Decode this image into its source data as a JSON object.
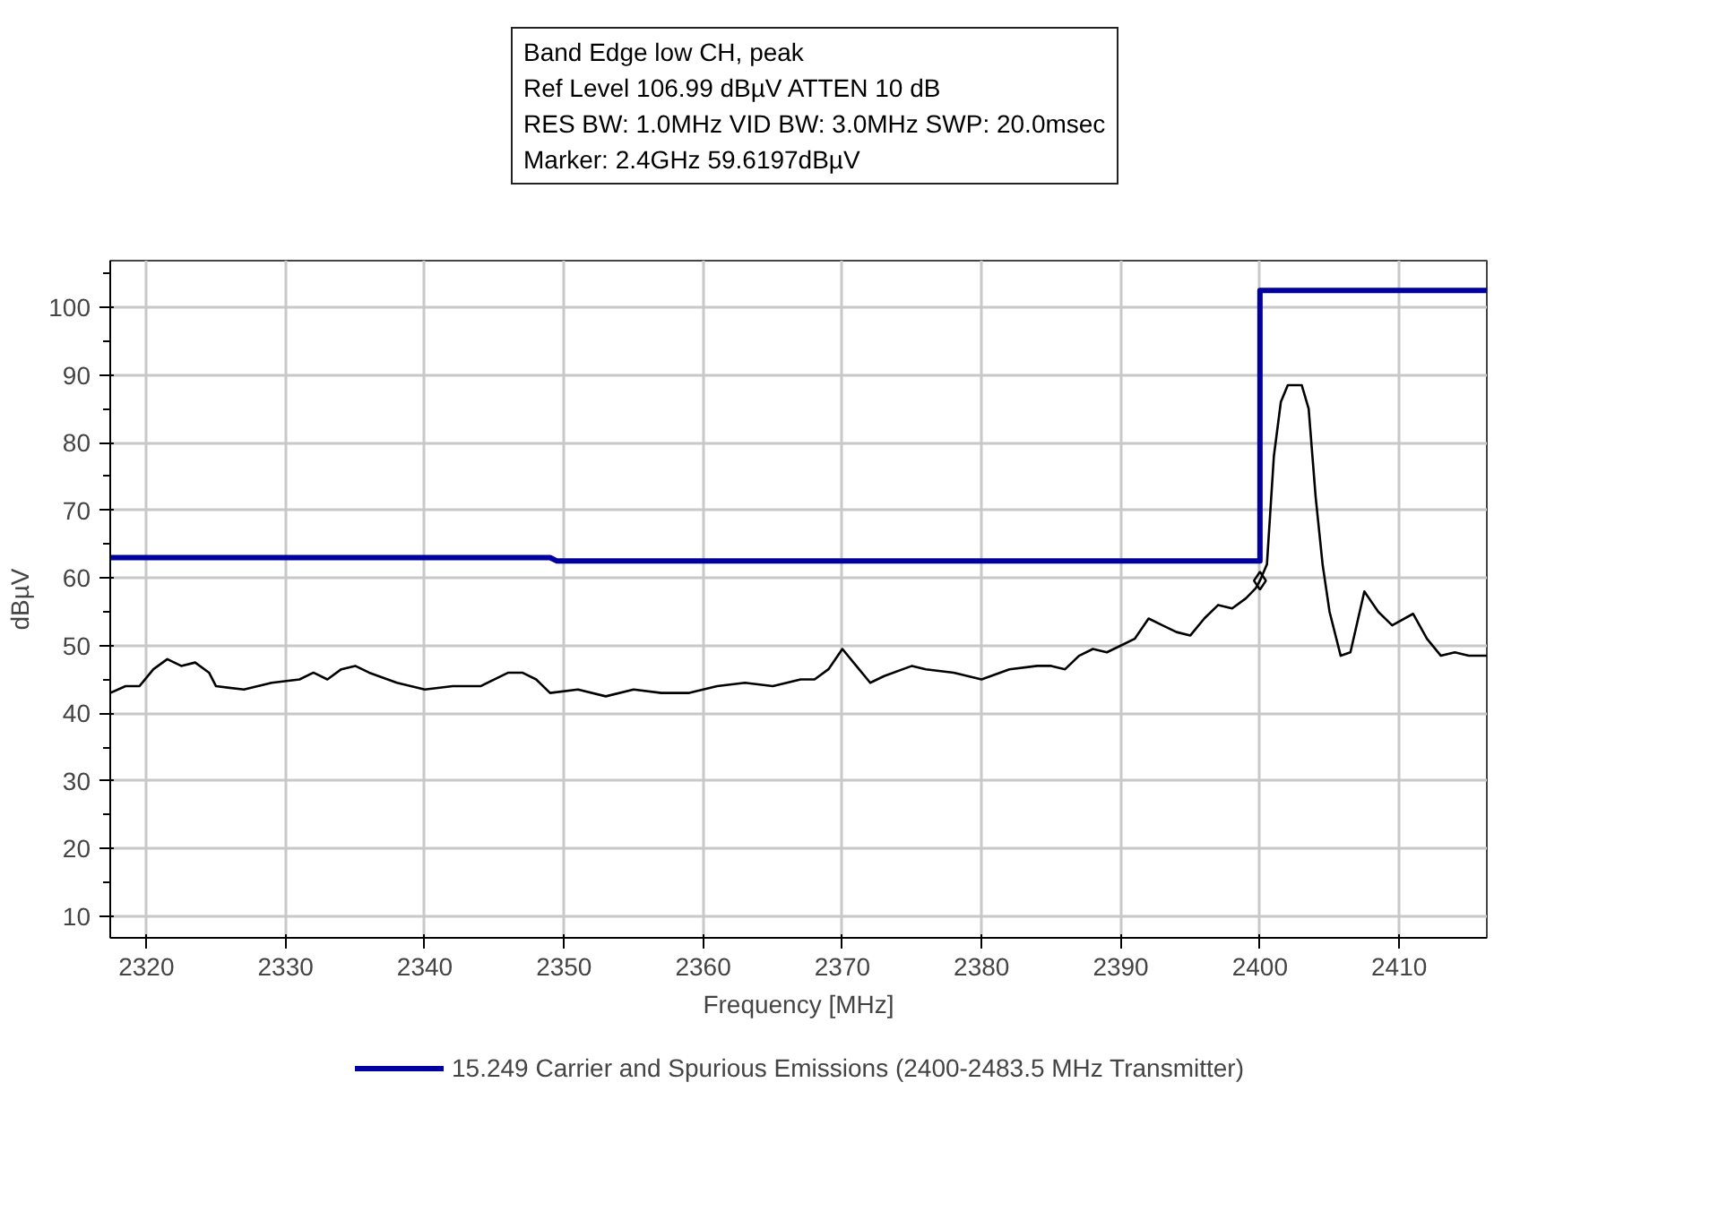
{
  "chart_data": {
    "type": "line",
    "xlabel": "Frequency [MHz]",
    "ylabel": "dBµV",
    "annotations": [
      "Band Edge low CH, peak",
      "Ref Level 106.99 dBµV    ATTEN 10 dB",
      "RES BW: 1.0MHz  VID BW: 3.0MHz  SWP: 20.0msec",
      "Marker: 2.4GHz  59.6197dBµV"
    ],
    "xlim": [
      2317.4,
      2416.3
    ],
    "ylim": [
      6.8,
      106.9
    ],
    "xticks": [
      2320,
      2330,
      2340,
      2350,
      2360,
      2370,
      2380,
      2390,
      2400,
      2410
    ],
    "yticks": [
      10,
      20,
      30,
      40,
      50,
      60,
      70,
      80,
      90,
      100
    ],
    "grid": true,
    "legend": "bottom",
    "line_style": "solid",
    "series": [
      {
        "name": "15.249 Carrier and Spurious Emissions (2400-2483.5 MHz Transmitter)",
        "color": "#0000a0",
        "x": [
          2317.4,
          2349,
          2349.5,
          2400,
          2400,
          2416.3
        ],
        "values": [
          63,
          63,
          62.5,
          62.5,
          102.5,
          102.5
        ]
      },
      {
        "color": "#000000",
        "x": [
          2317.4,
          2318.5,
          2319.5,
          2320.5,
          2321.5,
          2322.5,
          2323.5,
          2324.5,
          2325,
          2327,
          2329,
          2331,
          2332,
          2333,
          2334,
          2335,
          2336,
          2338,
          2340,
          2342,
          2344,
          2346,
          2347,
          2348,
          2349,
          2351,
          2353,
          2355,
          2357,
          2359,
          2361,
          2363,
          2365,
          2367,
          2368,
          2369,
          2370,
          2371,
          2372,
          2373,
          2375,
          2376,
          2378,
          2380,
          2382,
          2384,
          2385,
          2386,
          2387,
          2388,
          2389,
          2390,
          2391,
          2392,
          2393,
          2394,
          2395,
          2396,
          2397,
          2398,
          2399,
          2399.7,
          2400,
          2400.5,
          2401,
          2401.5,
          2402,
          2403,
          2403.5,
          2404,
          2404.5,
          2405,
          2405.8,
          2406.5,
          2407.5,
          2408.5,
          2409.5,
          2411,
          2412,
          2413,
          2414,
          2415,
          2416.3
        ],
        "values": [
          43,
          44,
          44,
          46.5,
          48,
          47,
          47.5,
          46,
          44,
          43.5,
          44.5,
          45,
          46,
          45,
          46.5,
          47,
          46,
          44.5,
          43.5,
          44,
          44,
          46,
          46,
          45,
          43,
          43.5,
          42.5,
          43.5,
          43,
          43,
          44,
          44.5,
          44,
          45,
          45,
          46.5,
          49.5,
          47,
          44.5,
          45.5,
          47,
          46.5,
          46,
          45,
          46.5,
          47,
          47,
          46.5,
          48.5,
          49.5,
          49,
          50,
          51,
          54,
          53,
          52,
          51.5,
          54,
          56,
          55.5,
          57,
          58.5,
          59.6,
          62,
          78,
          86,
          88.5,
          88.5,
          85,
          72,
          62,
          55,
          48.5,
          49,
          58,
          55,
          53,
          54.7,
          51,
          48.5,
          49,
          48.5,
          48.5
        ]
      },
      {
        "type": "scatter",
        "marker": "diamond",
        "color": "#000000",
        "x": [
          2400
        ],
        "values": [
          59.6
        ]
      }
    ]
  }
}
